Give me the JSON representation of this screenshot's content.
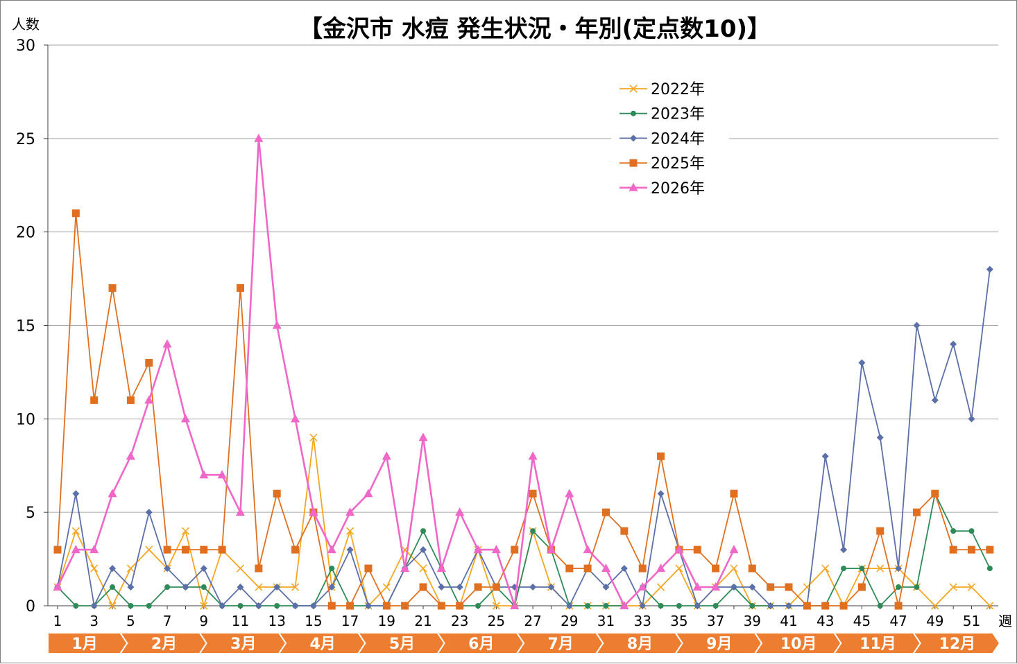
{
  "chart_data": {
    "type": "line",
    "title": "【金沢市 水痘 発生状況・年別(定点数10)】",
    "ylabel": "人数",
    "xlabel": "週",
    "ylim": [
      0,
      30
    ],
    "yticks": [
      0,
      5,
      10,
      15,
      20,
      25,
      30
    ],
    "xlim": [
      1,
      52
    ],
    "xtick_labels": [
      "1",
      "3",
      "5",
      "7",
      "9",
      "11",
      "13",
      "15",
      "17",
      "19",
      "21",
      "23",
      "25",
      "27",
      "29",
      "31",
      "33",
      "35",
      "37",
      "39",
      "41",
      "43",
      "45",
      "47",
      "49",
      "51"
    ],
    "grid": true,
    "legend_position": "top-center",
    "months": [
      "1月",
      "2月",
      "3月",
      "4月",
      "5月",
      "6月",
      "7月",
      "8月",
      "9月",
      "10月",
      "11月",
      "12月"
    ],
    "month_color": "#ed7d31",
    "series": [
      {
        "name": "2022年",
        "color": "#f5a623",
        "marker": "x",
        "values": [
          1,
          4,
          2,
          0,
          2,
          3,
          2,
          4,
          0,
          3,
          2,
          1,
          1,
          1,
          9,
          1,
          4,
          0,
          1,
          3,
          2,
          0,
          0,
          3,
          0,
          0,
          4,
          1,
          0,
          0,
          0,
          0,
          0,
          1,
          2,
          0,
          1,
          2,
          0,
          0,
          0,
          1,
          2,
          0,
          2,
          2,
          2,
          1,
          0,
          1,
          1,
          0
        ]
      },
      {
        "name": "2023年",
        "color": "#2e8b57",
        "marker": "circle",
        "values": [
          1,
          0,
          0,
          1,
          0,
          0,
          1,
          1,
          1,
          0,
          0,
          0,
          0,
          0,
          0,
          2,
          0,
          0,
          0,
          2,
          4,
          2,
          0,
          0,
          1,
          0,
          4,
          3,
          0,
          0,
          0,
          0,
          1,
          0,
          0,
          0,
          0,
          1,
          0,
          0,
          0,
          0,
          0,
          2,
          2,
          0,
          1,
          1,
          6,
          4,
          4,
          2
        ]
      },
      {
        "name": "2024年",
        "color": "#5b6fa8",
        "marker": "diamond",
        "values": [
          1,
          6,
          0,
          2,
          1,
          5,
          2,
          1,
          2,
          0,
          1,
          0,
          1,
          0,
          0,
          1,
          3,
          0,
          0,
          2,
          3,
          1,
          1,
          3,
          1,
          1,
          1,
          1,
          0,
          2,
          1,
          2,
          0,
          6,
          3,
          0,
          1,
          1,
          1,
          0,
          0,
          0,
          8,
          3,
          13,
          9,
          2,
          15,
          11,
          14,
          10,
          18
        ]
      },
      {
        "name": "2025年",
        "color": "#e07020",
        "marker": "square",
        "values": [
          3,
          21,
          11,
          17,
          11,
          13,
          3,
          3,
          3,
          3,
          17,
          2,
          6,
          3,
          5,
          0,
          0,
          2,
          0,
          0,
          1,
          0,
          0,
          1,
          1,
          3,
          6,
          3,
          2,
          2,
          5,
          4,
          2,
          8,
          3,
          3,
          2,
          6,
          2,
          1,
          1,
          0,
          0,
          0,
          1,
          4,
          0,
          5,
          6,
          3,
          3,
          3
        ]
      },
      {
        "name": "2026年",
        "color": "#f067c8",
        "marker": "triangle",
        "values": [
          1,
          3,
          3,
          6,
          8,
          11,
          14,
          10,
          7,
          7,
          5,
          25,
          15,
          10,
          5,
          3,
          5,
          6,
          8,
          2,
          9,
          2,
          5,
          3,
          3,
          0,
          8,
          3,
          6,
          3,
          2,
          0,
          1,
          2,
          3,
          1,
          1,
          3
        ]
      }
    ]
  }
}
